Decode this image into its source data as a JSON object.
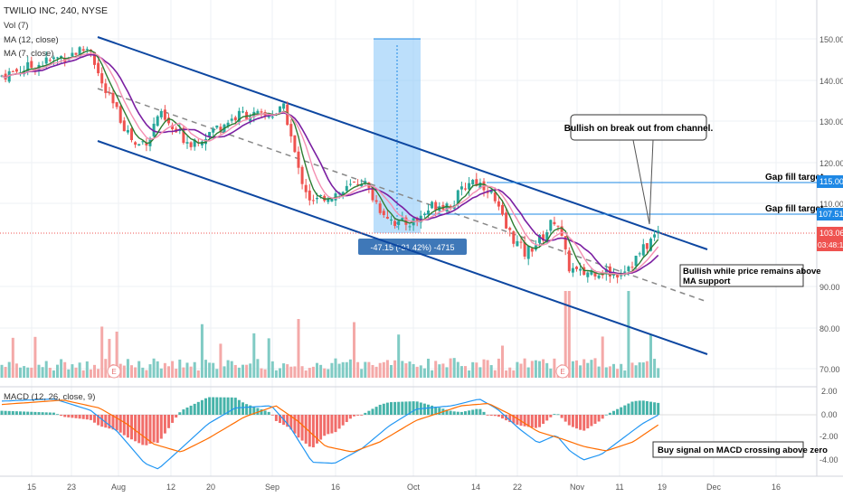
{
  "chart": {
    "title": "TWILIO INC, 240, NYSE",
    "legend": [
      "Vol (7)",
      "MA (12, close)",
      "MA (7, close)"
    ],
    "macd_label": "MACD (12, 26, close, 9)",
    "measure_label": "-47.15 (-31.42%) -4715",
    "price_labels": {
      "gap1": "115.00",
      "gap2": "107.51",
      "last": "103.06",
      "countdown": "03:48:11"
    }
  },
  "annotations": {
    "gap1": "Gap fill target",
    "gap2": "Gap fill target",
    "breakout": "Bullish on break out from channel.",
    "ma_support_1": "Bullish while price remains above",
    "ma_support_2": "MA support",
    "macd_signal": "Buy signal on MACD crossing above zero"
  },
  "colors": {
    "up": "#26a69a",
    "down": "#ef5350",
    "channel": "#0d47a1",
    "ma_slow": "#7b1fa2",
    "ma_fast": "#388e3c",
    "ma_pink": "#f06292",
    "gap_line": "#1e88e5",
    "macd_line": "#2196f3",
    "signal_line": "#ff6d00"
  },
  "chart_data": {
    "type": "candlestick",
    "price_axis_ticks": [
      "150.00",
      "140.00",
      "130.00",
      "120.00",
      "110.00",
      "90.00",
      "80.00",
      "70.00"
    ],
    "macd_axis_ticks": [
      "2.00",
      "0.00",
      "-2.00",
      "-4.00"
    ],
    "time_axis_ticks": [
      "15",
      "23",
      "Aug",
      "12",
      "20",
      "Sep",
      "16",
      "Oct",
      "14",
      "22",
      "Nov",
      "11",
      "19",
      "Dec",
      "16"
    ],
    "price_range": [
      65,
      155
    ],
    "gap_fill_targets": [
      115.0,
      107.51
    ],
    "last_price": 103.06,
    "key_closes": [
      {
        "x": "15",
        "close": 143
      },
      {
        "x": "23",
        "close": 149
      },
      {
        "x": "Aug",
        "close": 141
      },
      {
        "x": "12",
        "close": 124
      },
      {
        "x": "20",
        "close": 128
      },
      {
        "x": "Sep",
        "close": 131
      },
      {
        "x": "16",
        "close": 112
      },
      {
        "x": "Oct",
        "close": 106
      },
      {
        "x": "14",
        "close": 116
      },
      {
        "x": "22",
        "close": 99
      },
      {
        "x": "Nov",
        "close": 93
      },
      {
        "x": "11",
        "close": 92
      },
      {
        "x": "19",
        "close": 103
      }
    ]
  }
}
